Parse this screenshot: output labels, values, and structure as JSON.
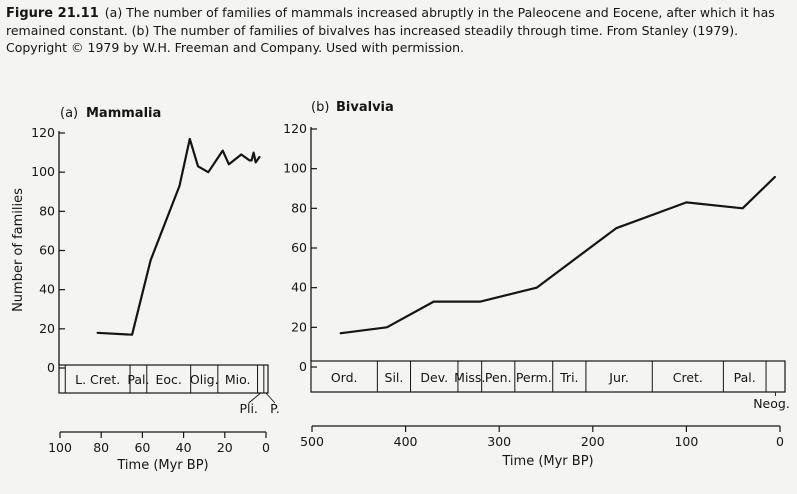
{
  "caption": {
    "figure_label": "Figure 21.11",
    "text": "(a) The number of families of mammals increased abruptly in the Paleocene and Eocene, after which it has remained constant.  (b) The number of families of bivalves has increased steadily through time. From Stanley (1979). Copyright © 1979 by W.H. Freeman and Company. Used with permission."
  },
  "chart_data": [
    {
      "type": "line",
      "panel_label": "(a)",
      "title": "Mammalia",
      "ylabel": "Number of families",
      "xlabel": "Time (Myr BP)",
      "ylim": [
        0,
        120
      ],
      "yticks": [
        0,
        20,
        40,
        60,
        80,
        100,
        120
      ],
      "xlim": [
        100,
        0
      ],
      "xticks": [
        100,
        80,
        60,
        40,
        20,
        0
      ],
      "series": [
        {
          "name": "Mammalia",
          "x": [
            82,
            65,
            56,
            42,
            37,
            33,
            28,
            21,
            18,
            12,
            8,
            7,
            6,
            5,
            3
          ],
          "y": [
            18,
            17,
            55,
            93,
            117,
            103,
            100,
            111,
            104,
            109,
            106,
            106,
            110,
            105,
            108
          ]
        }
      ],
      "periods": [
        {
          "label": "L. Cret.",
          "start": 97,
          "end": 66
        },
        {
          "label": "Pal.",
          "start": 66,
          "end": 58
        },
        {
          "label": "Eoc.",
          "start": 58,
          "end": 37
        },
        {
          "label": "Olig.",
          "start": 37,
          "end": 24
        },
        {
          "label": "Mio.",
          "start": 24,
          "end": 5
        }
      ],
      "small_periods": [
        {
          "label": "Pli.",
          "start": 5,
          "end": 2
        },
        {
          "label": "P.",
          "start": 2,
          "end": 0
        }
      ]
    },
    {
      "type": "line",
      "panel_label": "(b)",
      "title": "Bivalvia",
      "ylabel": "",
      "xlabel": "Time (Myr BP)",
      "ylim": [
        0,
        120
      ],
      "yticks": [
        0,
        20,
        40,
        60,
        80,
        100,
        120
      ],
      "xlim": [
        500,
        0
      ],
      "xticks": [
        500,
        400,
        300,
        200,
        100,
        0
      ],
      "series": [
        {
          "name": "Bivalvia",
          "x": [
            470,
            420,
            370,
            320,
            260,
            175,
            100,
            40,
            5
          ],
          "y": [
            17,
            20,
            33,
            33,
            40,
            70,
            83,
            80,
            96
          ]
        }
      ],
      "periods": [
        {
          "label": "Ord.",
          "start": 500,
          "end": 430
        },
        {
          "label": "Sil.",
          "start": 430,
          "end": 395
        },
        {
          "label": "Dev.",
          "start": 395,
          "end": 345
        },
        {
          "label": "Miss.",
          "start": 345,
          "end": 320
        },
        {
          "label": "Pen.",
          "start": 320,
          "end": 285
        },
        {
          "label": "Perm.",
          "start": 285,
          "end": 245
        },
        {
          "label": "Tri.",
          "start": 245,
          "end": 210
        },
        {
          "label": "Jur.",
          "start": 210,
          "end": 140
        },
        {
          "label": "Cret.",
          "start": 140,
          "end": 65
        },
        {
          "label": "Pal.",
          "start": 65,
          "end": 20
        }
      ],
      "small_periods": [
        {
          "label": "Neog.",
          "start": 20,
          "end": 0
        }
      ]
    }
  ],
  "colors": {
    "ink": "#151515",
    "background": "#f4f4f2"
  }
}
